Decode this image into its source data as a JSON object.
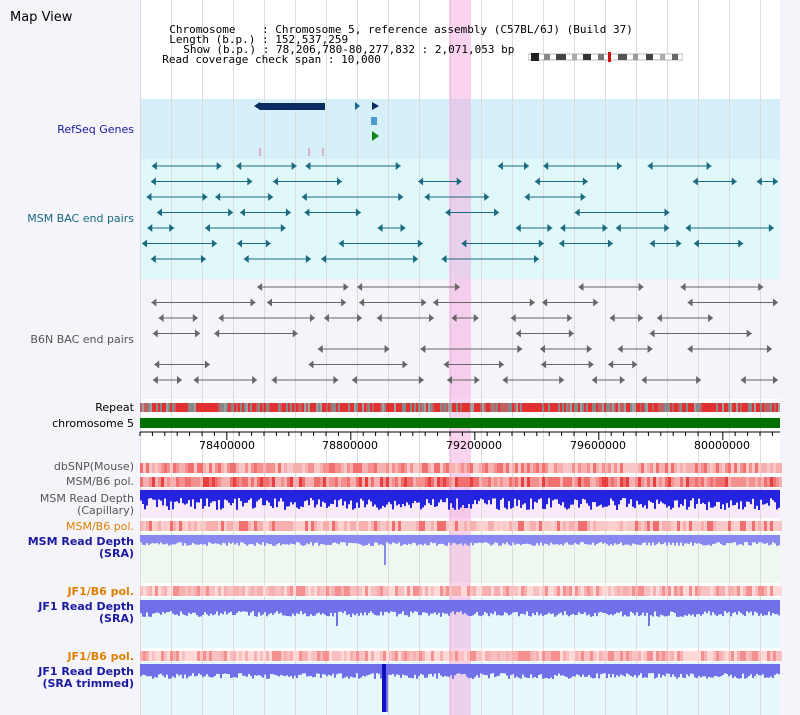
{
  "view": {
    "title": "Map View"
  },
  "info": {
    "chromosome_label": "Chromosome",
    "chromosome_value": "Chromosome 5, reference assembly (C57BL/6J) (Build 37)",
    "length_label": "Length (b.p.)",
    "length_value": "152,537,259",
    "show_label": "Show (b.p.)",
    "show_value": "78,206,780-80,277,832 : 2,071,053 bp",
    "coverage_label": "Read coverage check span",
    "coverage_value": "10,000",
    "separator": ":"
  },
  "tracks": {
    "refseq": {
      "label": "RefSeq Genes",
      "color": "#1a1aa0"
    },
    "msm_bac": {
      "label": "MSM BAC end pairs",
      "color": "#1a6a80"
    },
    "b6n_bac": {
      "label": "B6N BAC end pairs",
      "color": "#555555"
    },
    "repeat": {
      "label": "Repeat"
    },
    "chromosome": {
      "label": "chromosome 5",
      "color": "#007000"
    },
    "dbsnp": {
      "label": "dbSNP(Mouse)"
    },
    "msm_b6_pol": {
      "label": "MSM/B6 pol."
    },
    "msm_depth_cap": {
      "label_line1": "MSM Read Depth",
      "label_line2": "(Capillary)"
    },
    "msm_b6_pol_sra": {
      "label": "MSM/B6 pol.",
      "color": "#e08000"
    },
    "msm_depth_sra": {
      "label_line1": "MSM Read Depth",
      "label_line2": "(SRA)"
    },
    "jf1_b6_pol": {
      "label": "JF1/B6 pol.",
      "color": "#e08000"
    },
    "jf1_depth_sra": {
      "label_line1": "JF1 Read Depth",
      "label_line2": "(SRA)"
    },
    "jf1_b6_pol_2": {
      "label": "JF1/B6 pol.",
      "color": "#e08000"
    },
    "jf1_depth_trim": {
      "label_line1": "JF1 Read Depth",
      "label_line2": "(SRA trimmed)"
    }
  },
  "axis": {
    "ticks": [
      "78400000",
      "78800000",
      "79200000",
      "79600000",
      "80000000"
    ]
  },
  "colors": {
    "highlight": "#f5a0dc",
    "depth_blue": "#2020d0",
    "depth_light": "#8080f0",
    "snp_red": "#f06060"
  }
}
